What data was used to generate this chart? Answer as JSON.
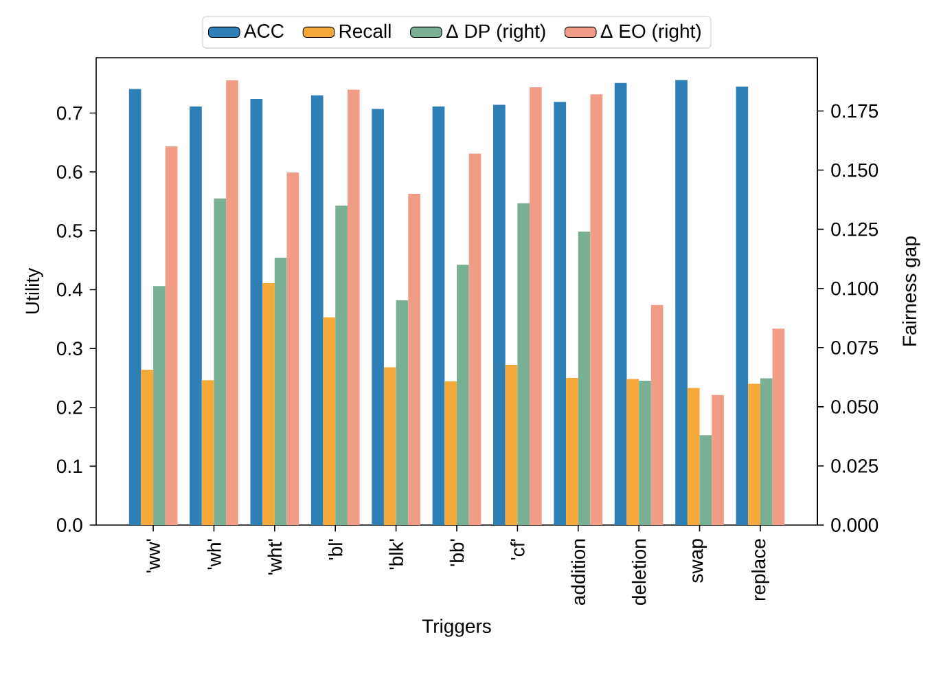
{
  "chart_data": {
    "type": "bar",
    "xlabel": "Triggers",
    "ylabel": "Utility",
    "y2label": "Fairness gap",
    "categories": [
      "'ww'",
      "'wh'",
      "'wht'",
      "'bl'",
      "'blk'",
      "'bb'",
      "'cf'",
      "addition",
      "deletion",
      "swap",
      "replace"
    ],
    "series": [
      {
        "name": "ACC",
        "color": "#2e7fb5",
        "axis": "y",
        "values": [
          0.741,
          0.711,
          0.724,
          0.73,
          0.707,
          0.711,
          0.714,
          0.719,
          0.751,
          0.756,
          0.745
        ]
      },
      {
        "name": "Recall",
        "color": "#f5a93b",
        "axis": "y",
        "values": [
          0.264,
          0.246,
          0.411,
          0.353,
          0.268,
          0.244,
          0.272,
          0.25,
          0.248,
          0.233,
          0.24
        ]
      },
      {
        "name": "Δ DP (right)",
        "color": "#79af92",
        "axis": "y2",
        "values": [
          0.101,
          0.138,
          0.113,
          0.135,
          0.095,
          0.11,
          0.136,
          0.124,
          0.061,
          0.038,
          0.062
        ]
      },
      {
        "name": "Δ EO (right)",
        "color": "#f19c87",
        "axis": "y2",
        "values": [
          0.16,
          0.188,
          0.149,
          0.184,
          0.14,
          0.157,
          0.185,
          0.182,
          0.093,
          0.055,
          0.083
        ]
      }
    ],
    "ylim": [
      0,
      0.794
    ],
    "yticks": [
      {
        "value": 0,
        "label": "0.0"
      },
      0.1,
      0.2,
      0.3,
      0.4,
      0.5,
      0.6,
      0.7
    ],
    "y2lim": [
      0,
      0.1975
    ],
    "y2ticks": [
      {
        "value": 0,
        "label": "0.000"
      },
      0.025,
      {
        "value": 0.05,
        "label": "0.050"
      },
      0.075,
      {
        "value": 0.1,
        "label": "0.100"
      },
      0.125,
      {
        "value": 0.15,
        "label": "0.150"
      },
      0.175
    ],
    "legend": "top"
  }
}
